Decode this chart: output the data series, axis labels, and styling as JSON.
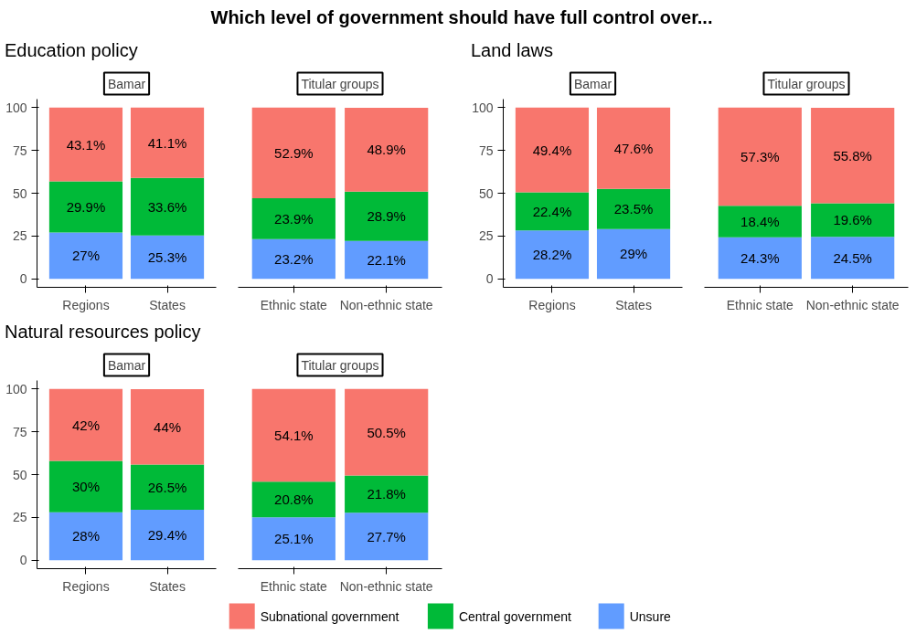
{
  "chart_data": [
    {
      "type": "bar",
      "stacked": true,
      "annotations": [
        "Which level of government should have full control over..."
      ],
      "subtitle": "Education policy",
      "title": "Bamar",
      "categories": [
        "Regions",
        "States"
      ],
      "series": [
        {
          "name": "Unsure",
          "color": "#619cff",
          "values": [
            27,
            25.3
          ],
          "value_labels": [
            "27%",
            "25.3%"
          ]
        },
        {
          "name": "Central government",
          "color": "#00ba38",
          "values": [
            29.9,
            33.6
          ],
          "value_labels": [
            "29.9%",
            "33.6%"
          ]
        },
        {
          "name": "Subnational government",
          "color": "#f8766d",
          "values": [
            43.1,
            41.1
          ],
          "value_labels": [
            "43.1%",
            "41.1%"
          ]
        }
      ],
      "ylim": [
        -5,
        105
      ],
      "yticks": [
        0,
        25,
        50,
        75,
        100
      ],
      "grid": false,
      "legend": "bottom"
    },
    {
      "type": "bar",
      "stacked": true,
      "title": "Titular groups",
      "categories": [
        "Ethnic state",
        "Non-ethnic state"
      ],
      "series": [
        {
          "color": "#619cff",
          "values": [
            23.2,
            22.1
          ],
          "value_labels": [
            "23.2%",
            "22.1%"
          ]
        },
        {
          "color": "#00ba38",
          "values": [
            23.9,
            28.9
          ],
          "value_labels": [
            "23.9%",
            "28.9%"
          ]
        },
        {
          "color": "#f8766d",
          "values": [
            52.9,
            48.9
          ],
          "value_labels": [
            "52.9%",
            "48.9%"
          ]
        }
      ],
      "tick_labels": "x",
      "grid": false
    },
    {
      "type": "bar",
      "stacked": true,
      "subtitle": "Land laws",
      "title": "Bamar",
      "categories": [
        "Regions",
        "States"
      ],
      "series": [
        {
          "color": "#619cff",
          "values": [
            28.2,
            29
          ],
          "value_labels": [
            "28.2%",
            "29%"
          ]
        },
        {
          "color": "#00ba38",
          "values": [
            22.4,
            23.5
          ],
          "value_labels": [
            "22.4%",
            "23.5%"
          ]
        },
        {
          "color": "#f8766d",
          "values": [
            49.4,
            47.6
          ],
          "value_labels": [
            "49.4%",
            "47.6%"
          ]
        }
      ],
      "ylim": [
        -5,
        105
      ],
      "yticks": [
        0,
        25,
        50,
        75,
        100
      ],
      "grid": false
    },
    {
      "type": "bar",
      "stacked": true,
      "title": "Titular groups",
      "categories": [
        "Ethnic state",
        "Non-ethnic state"
      ],
      "series": [
        {
          "color": "#619cff",
          "values": [
            24.3,
            24.5
          ],
          "value_labels": [
            "24.3%",
            "24.5%"
          ]
        },
        {
          "color": "#00ba38",
          "values": [
            18.4,
            19.6
          ],
          "value_labels": [
            "18.4%",
            "19.6%"
          ]
        },
        {
          "color": "#f8766d",
          "values": [
            57.3,
            55.8
          ],
          "value_labels": [
            "57.3%",
            "55.8%"
          ]
        }
      ],
      "tick_labels": "x",
      "grid": false
    },
    {
      "type": "bar",
      "stacked": true,
      "subtitle": "Natural resources policy",
      "title": "Bamar",
      "categories": [
        "Regions",
        "States"
      ],
      "series": [
        {
          "color": "#619cff",
          "values": [
            28,
            29.4
          ],
          "value_labels": [
            "28%",
            "29.4%"
          ]
        },
        {
          "color": "#00ba38",
          "values": [
            30,
            26.5
          ],
          "value_labels": [
            "30%",
            "26.5%"
          ]
        },
        {
          "color": "#f8766d",
          "values": [
            42,
            44
          ],
          "value_labels": [
            "42%",
            "44%"
          ]
        }
      ],
      "ylim": [
        -5,
        105
      ],
      "yticks": [
        0,
        25,
        50,
        75,
        100
      ],
      "grid": false
    },
    {
      "type": "bar",
      "stacked": true,
      "title": "Titular groups",
      "categories": [
        "Ethnic state",
        "Non-ethnic state"
      ],
      "series": [
        {
          "color": "#619cff",
          "values": [
            25.1,
            27.7
          ],
          "value_labels": [
            "25.1%",
            "27.7%"
          ]
        },
        {
          "color": "#00ba38",
          "values": [
            20.8,
            21.8
          ],
          "value_labels": [
            "20.8%",
            "21.8%"
          ]
        },
        {
          "color": "#f8766d",
          "values": [
            54.1,
            50.5
          ],
          "value_labels": [
            "54.1%",
            "50.5%"
          ]
        }
      ],
      "tick_labels": "x",
      "grid": false
    }
  ]
}
